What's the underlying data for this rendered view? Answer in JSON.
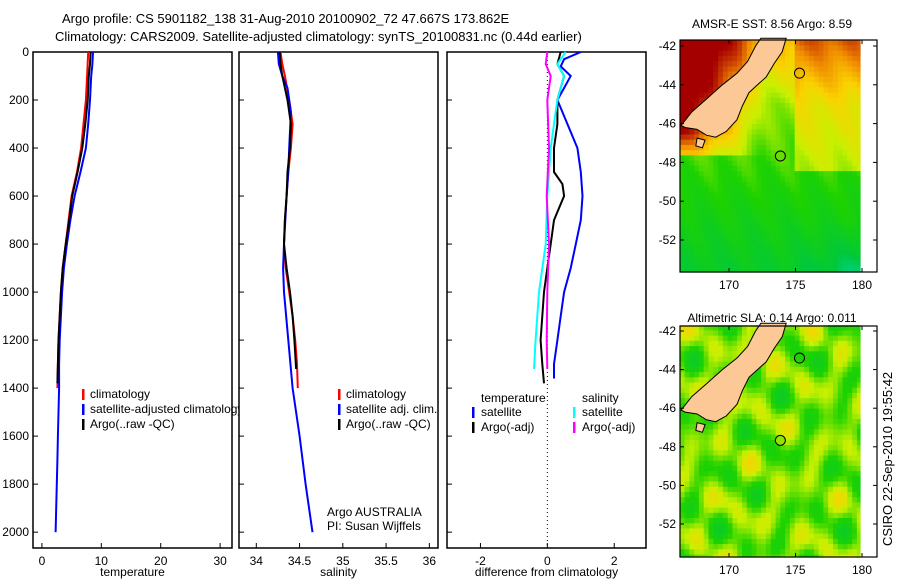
{
  "title": {
    "line1": "Argo profile: CS 5901182_138 31-Aug-2010 20100902_72 47.667S 173.862E",
    "line2": "Climatology: CARS2009. Satellite-adjusted climatology: synTS_20100831.nc (0.44d earlier)"
  },
  "footer_stamp": "CSIRO 22-Sep-2010 19:55:42",
  "colors": {
    "red": "#ff0000",
    "blue": "#0000ff",
    "black": "#000000",
    "cyan": "#00ffff",
    "magenta": "#ff00ff",
    "land": "#fcc896"
  },
  "chart_data": [
    {
      "type": "line",
      "xlabel": "temperature",
      "ylabel": "",
      "xlim": [
        -1.5,
        32
      ],
      "ylim": [
        2066,
        0
      ],
      "xticks": [
        "0",
        "10",
        "20",
        "30"
      ],
      "xtick_values": [
        0,
        10,
        20,
        30
      ],
      "yticks": [
        "0",
        "200",
        "400",
        "600",
        "800",
        "1000",
        "1200",
        "1400",
        "1600",
        "1800",
        "2000"
      ],
      "ytick_values": [
        0,
        200,
        400,
        600,
        800,
        1000,
        1200,
        1400,
        1600,
        1800,
        2000
      ],
      "legend": [
        {
          "label": "climatology",
          "color": "#ff0000"
        },
        {
          "label": "satellite-adjusted climatology",
          "color": "#0000ff"
        },
        {
          "label": "Argo(..raw -QC)",
          "color": "#000000"
        }
      ],
      "series": [
        {
          "name": "climatology",
          "color": "#ff0000",
          "depth": [
            0,
            100,
            200,
            300,
            400,
            500,
            600,
            700,
            800,
            900,
            1000,
            1100,
            1200,
            1300,
            1400
          ],
          "values": [
            7.8,
            7.6,
            7.4,
            7.0,
            6.6,
            5.9,
            5.0,
            4.5,
            4.0,
            3.5,
            3.2,
            3.0,
            2.8,
            2.7,
            2.6
          ]
        },
        {
          "name": "satellite-adjusted climatology",
          "color": "#0000ff",
          "depth": [
            0,
            50,
            100,
            200,
            300,
            400,
            500,
            600,
            700,
            800,
            900,
            1000,
            1100,
            1200,
            1300,
            1400,
            1500,
            1600,
            1700,
            1800,
            1900,
            2000
          ],
          "values": [
            8.6,
            8.5,
            8.3,
            8.1,
            7.8,
            7.4,
            6.5,
            5.5,
            4.8,
            4.2,
            3.7,
            3.4,
            3.2,
            3.0,
            2.9,
            2.9,
            2.8,
            2.7,
            2.6,
            2.5,
            2.4,
            2.3
          ]
        },
        {
          "name": "Argo(..raw -QC)",
          "color": "#000000",
          "depth": [
            0,
            50,
            100,
            200,
            300,
            400,
            500,
            600,
            700,
            800,
            900,
            1000,
            1100,
            1200,
            1300,
            1380
          ],
          "values": [
            8.2,
            8.1,
            7.9,
            7.7,
            7.3,
            6.8,
            6.0,
            5.1,
            4.6,
            4.0,
            3.5,
            3.2,
            3.0,
            2.8,
            2.7,
            2.6
          ]
        }
      ]
    },
    {
      "type": "line",
      "xlabel": "salinity",
      "xlim": [
        33.8,
        36.1
      ],
      "ylim": [
        2066,
        0
      ],
      "xticks": [
        "34",
        "34.5",
        "35",
        "35.5",
        "36"
      ],
      "xtick_values": [
        34,
        34.5,
        35,
        35.5,
        36
      ],
      "ytick_values": [
        0,
        200,
        400,
        600,
        800,
        1000,
        1200,
        1400,
        1600,
        1800,
        2000
      ],
      "legend": [
        {
          "label": "climatology",
          "color": "#ff0000"
        },
        {
          "label": "satellite adj. clim.",
          "color": "#0000ff"
        },
        {
          "label": "Argo(..raw -QC)",
          "color": "#000000"
        }
      ],
      "annotation": [
        "Argo AUSTRALIA",
        "PI: Susan Wijffels"
      ],
      "series": [
        {
          "name": "climatology",
          "color": "#ff0000",
          "depth": [
            0,
            50,
            100,
            200,
            300,
            400,
            500,
            600,
            700,
            800,
            900,
            1000,
            1100,
            1200,
            1300,
            1400
          ],
          "values": [
            34.28,
            34.3,
            34.33,
            34.38,
            34.42,
            34.4,
            34.37,
            34.35,
            34.33,
            34.32,
            34.34,
            34.38,
            34.42,
            34.45,
            34.47,
            34.48
          ]
        },
        {
          "name": "satellite adj. clim.",
          "color": "#0000ff",
          "depth": [
            0,
            50,
            100,
            150,
            250,
            400,
            500,
            600,
            800,
            900,
            1000,
            1200,
            1400,
            1600,
            1800,
            2000
          ],
          "values": [
            34.25,
            34.26,
            34.3,
            34.36,
            34.4,
            34.38,
            34.37,
            34.35,
            34.32,
            34.31,
            34.32,
            34.37,
            34.42,
            34.5,
            34.57,
            34.65
          ]
        },
        {
          "name": "Argo(..raw -QC)",
          "color": "#000000",
          "depth": [
            0,
            50,
            100,
            200,
            300,
            400,
            500,
            600,
            700,
            800,
            900,
            1000,
            1100,
            1200,
            1320
          ],
          "values": [
            34.27,
            34.28,
            34.3,
            34.36,
            34.4,
            34.39,
            34.36,
            34.35,
            34.33,
            34.32,
            34.35,
            34.39,
            34.42,
            34.44,
            34.46
          ]
        }
      ]
    },
    {
      "type": "line",
      "xlabel": "difference from climatology",
      "xlim": [
        -3.0,
        2.95
      ],
      "ylim": [
        2066,
        0
      ],
      "xticks": [
        "-2",
        "0",
        "2"
      ],
      "xtick_values": [
        -2,
        0,
        2
      ],
      "ytick_values": [
        0,
        200,
        400,
        600,
        800,
        1000,
        1200,
        1400,
        1600,
        1800,
        2000
      ],
      "zero_line": true,
      "legend_groups": [
        {
          "heading": "temperature",
          "items": [
            {
              "label": "satellite",
              "color": "#0000ff"
            },
            {
              "label": "Argo(-adj)",
              "color": "#000000"
            }
          ]
        },
        {
          "heading": "salinity",
          "items": [
            {
              "label": "satellite",
              "color": "#00ffff"
            },
            {
              "label": "Argo(-adj)",
              "color": "#ff00ff"
            }
          ]
        }
      ],
      "series": [
        {
          "name": "temperature satellite",
          "color": "#0000ff",
          "depth": [
            0,
            30,
            60,
            100,
            150,
            200,
            300,
            400,
            500,
            600,
            700,
            800,
            900,
            1000,
            1100,
            1200,
            1300,
            1360
          ],
          "values": [
            1.0,
            0.5,
            0.4,
            0.7,
            0.5,
            0.3,
            0.6,
            0.9,
            1.0,
            1.05,
            1.0,
            0.85,
            0.7,
            0.5,
            0.4,
            0.3,
            0.2,
            0.2
          ]
        },
        {
          "name": "temperature Argo(-adj)",
          "color": "#000000",
          "depth": [
            0,
            50,
            100,
            200,
            300,
            400,
            500,
            550,
            600,
            650,
            700,
            800,
            900,
            1000,
            1100,
            1200,
            1300,
            1380
          ],
          "values": [
            0.4,
            0.3,
            0.5,
            0.3,
            0.3,
            0.2,
            0.2,
            0.45,
            0.5,
            0.35,
            0.2,
            0.1,
            0.0,
            -0.1,
            -0.15,
            -0.2,
            -0.15,
            -0.1
          ]
        },
        {
          "name": "salinity satellite",
          "color": "#00ffff",
          "depth": [
            0,
            50,
            100,
            200,
            300,
            400,
            600,
            800,
            1000,
            1200,
            1320
          ],
          "values": [
            0.55,
            0.3,
            0.5,
            0.3,
            0.2,
            0.1,
            0.0,
            -0.05,
            -0.25,
            -0.35,
            -0.4
          ]
        },
        {
          "name": "salinity Argo(-adj)",
          "color": "#ff00ff",
          "depth": [
            0,
            50,
            100,
            200,
            400,
            600,
            800,
            1000,
            1200,
            1320
          ],
          "values": [
            0.0,
            -0.05,
            0.1,
            0.0,
            0.05,
            -0.02,
            0.05,
            0.0,
            -0.02,
            0.0
          ]
        }
      ]
    },
    {
      "type": "heatmap",
      "title": "AMSR-E SST: 8.56 Argo: 8.59",
      "field": "sst",
      "lon_range": [
        166.3,
        181.3
      ],
      "lat_range": [
        -53.9,
        -41.7
      ],
      "xticks": [
        "170",
        "175",
        "180"
      ],
      "xtick_values": [
        170,
        175,
        180
      ],
      "yticks": [
        "-42",
        "-44",
        "-46",
        "-48",
        "-50",
        "-52"
      ],
      "ytick_values": [
        -42,
        -44,
        -46,
        -48,
        -50,
        -52
      ],
      "argo_position": {
        "lon": 173.862,
        "lat": -47.667
      }
    },
    {
      "type": "heatmap",
      "title": "Altimetric SLA: 0.14 Argo: 0.011",
      "field": "sla",
      "lon_range": [
        166.3,
        181.3
      ],
      "lat_range": [
        -53.9,
        -41.7
      ],
      "xticks": [
        "170",
        "175",
        "180"
      ],
      "xtick_values": [
        170,
        175,
        180
      ],
      "yticks": [
        "-42",
        "-44",
        "-46",
        "-48",
        "-50",
        "-52"
      ],
      "ytick_values": [
        -42,
        -44,
        -46,
        -48,
        -50,
        -52
      ],
      "argo_position": {
        "lon": 173.862,
        "lat": -47.667
      }
    }
  ]
}
